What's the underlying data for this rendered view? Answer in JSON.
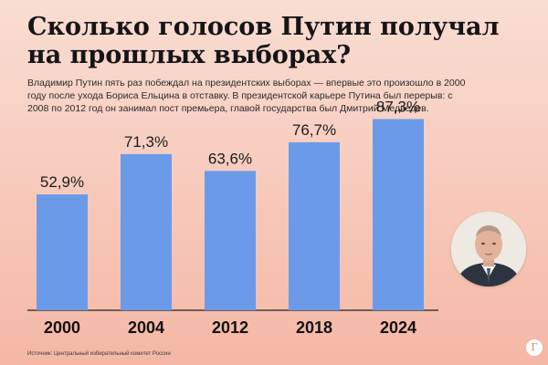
{
  "header": {
    "title": "Сколько голосов Путин получал на прошлых выборах?",
    "subtitle": "Владимир Путин пять раз побеждал на президентских выборах — впервые это произошло в 2000 году после ухода Бориса Ельцина в отставку. В президентской карьере Путина был перерыв: с 2008 по 2012 год он занимал пост премьера, главой государства был Дмитрий Медведев."
  },
  "chart_data": {
    "type": "bar",
    "categories": [
      "2000",
      "2004",
      "2012",
      "2018",
      "2024"
    ],
    "values": [
      52.9,
      71.3,
      63.6,
      76.7,
      87.3
    ],
    "value_labels": [
      "52,9%",
      "71,3%",
      "63,6%",
      "76,7%",
      "87,3%"
    ],
    "title": "Сколько голосов Путин получал на прошлых выборах?",
    "xlabel": "",
    "ylabel": "",
    "ylim": [
      0,
      100
    ],
    "grid": false,
    "colors": {
      "bar": "#6b9be8",
      "axis": "#222222"
    }
  },
  "footer": {
    "source": "Источник: Центральный избирательный комитет России",
    "logo": "Г"
  },
  "colors": {
    "background": "#f7c9ba",
    "bar": "#6b9be8"
  },
  "icons": {
    "portrait": "portrait-photo",
    "logo": "publisher-logo-icon"
  }
}
